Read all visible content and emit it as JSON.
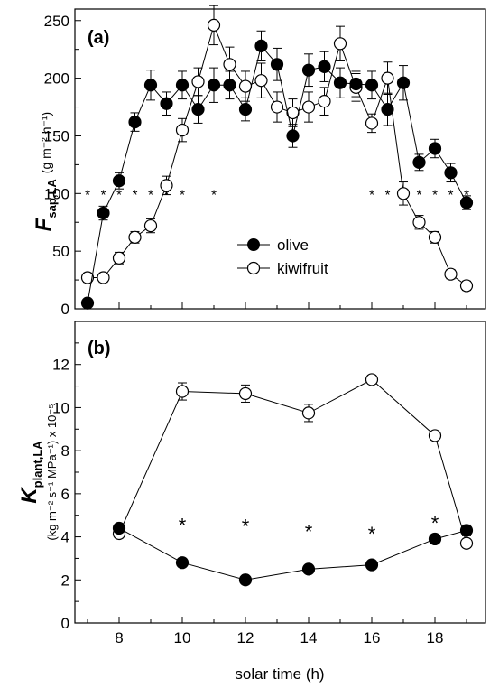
{
  "chart_data": [
    {
      "panel_label": "(a)",
      "type": "line",
      "ylabel_symbol": "F",
      "ylabel_sub": "sap,LA",
      "ylabel_units": "(g m⁻² h⁻¹)",
      "ylim": [
        0,
        260
      ],
      "yticks": [
        0,
        50,
        100,
        150,
        200,
        250
      ],
      "xlim": [
        6.6,
        19.6
      ],
      "xticks": [
        8,
        10,
        12,
        14,
        16,
        18
      ],
      "legend": {
        "position": "center",
        "entries": [
          "olive",
          "kiwifruit"
        ]
      },
      "series": [
        {
          "name": "olive",
          "marker": "filled",
          "x": [
            7,
            7.5,
            8,
            8.5,
            9,
            9.5,
            10,
            10.5,
            11,
            11.5,
            12,
            12.5,
            13,
            13.5,
            14,
            14.5,
            15,
            15.5,
            16,
            16.5,
            17,
            17.5,
            18,
            18.5,
            19
          ],
          "y": [
            5,
            83,
            111,
            162,
            194,
            178,
            194,
            173,
            194,
            194,
            173,
            228,
            212,
            150,
            207,
            210,
            196,
            195,
            194,
            173,
            196,
            127,
            139,
            118,
            92
          ],
          "err": [
            3,
            6,
            7,
            8,
            13,
            10,
            12,
            12,
            15,
            12,
            10,
            13,
            14,
            10,
            14,
            13,
            13,
            11,
            12,
            14,
            15,
            7,
            8,
            8,
            6
          ]
        },
        {
          "name": "kiwifruit",
          "marker": "open",
          "x": [
            7,
            7.5,
            8,
            8.5,
            9,
            9.5,
            10,
            10.5,
            11,
            11.5,
            12,
            12.5,
            13,
            13.5,
            14,
            14.5,
            15,
            15.5,
            16,
            16.5,
            17,
            17.5,
            18,
            18.5,
            19
          ],
          "y": [
            27,
            27,
            44,
            62,
            72,
            107,
            155,
            197,
            246,
            212,
            193,
            198,
            175,
            170,
            175,
            180,
            230,
            192,
            161,
            200,
            100,
            75,
            62,
            30,
            20
          ],
          "err": [
            4,
            4,
            5,
            5,
            6,
            8,
            10,
            12,
            17,
            15,
            13,
            15,
            13,
            12,
            13,
            12,
            15,
            12,
            8,
            14,
            10,
            6,
            5,
            4,
            4
          ]
        }
      ],
      "significance_markers": {
        "symbol": "*",
        "y": 100,
        "x": [
          7,
          7.5,
          8,
          8.5,
          9,
          9.5,
          10,
          11,
          16,
          16.5,
          17,
          17.5,
          18,
          18.5,
          19
        ]
      }
    },
    {
      "panel_label": "(b)",
      "type": "line",
      "ylabel_symbol": "K",
      "ylabel_sub": "plant,LA",
      "ylabel_units": "(kg m⁻² s⁻¹ MPa⁻¹) x 10⁻⁵",
      "ylim": [
        0,
        14
      ],
      "yticks": [
        0,
        2,
        4,
        6,
        8,
        10,
        12
      ],
      "xlim": [
        6.6,
        19.6
      ],
      "xticks": [
        8,
        10,
        12,
        14,
        16,
        18
      ],
      "xlabel": "solar time (h)",
      "series": [
        {
          "name": "olive",
          "marker": "filled",
          "x": [
            8,
            10,
            12,
            14,
            16,
            18,
            19
          ],
          "y": [
            4.4,
            2.8,
            2.0,
            2.5,
            2.7,
            3.9,
            4.3
          ],
          "err": [
            0.15,
            0.15,
            0.1,
            0.1,
            0.1,
            0.15,
            0.25
          ]
        },
        {
          "name": "kiwifruit",
          "marker": "open",
          "x": [
            8,
            10,
            12,
            14,
            16,
            18,
            19
          ],
          "y": [
            4.15,
            10.75,
            10.65,
            9.75,
            11.3,
            8.7,
            3.7
          ],
          "err": [
            0.2,
            0.4,
            0.4,
            0.4,
            0.2,
            0.2,
            0.2
          ]
        }
      ],
      "significance_markers": {
        "symbol": "*",
        "x": [
          10,
          12,
          14,
          16,
          18
        ],
        "y": [
          4.6,
          4.55,
          4.3,
          4.2,
          4.7
        ]
      }
    }
  ]
}
